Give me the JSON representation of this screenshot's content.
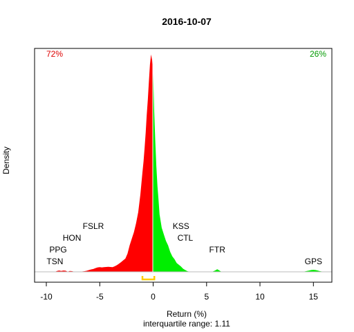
{
  "chart_data": {
    "type": "area",
    "title": "2016-10-07",
    "xlabel": "Return (%)",
    "subtitle": "interquartile range: 1.11",
    "ylabel": "Density",
    "xlim": [
      -10.5,
      16.8
    ],
    "xticks": [
      -10,
      -5,
      0,
      5,
      10,
      15
    ],
    "pct_negative": "72%",
    "pct_positive": "26%",
    "colors": {
      "negative": "#ff0000",
      "positive": "#00ee00",
      "iqr": "#ffcc00",
      "neg_text": "#dd0000",
      "pos_text": "#009900"
    },
    "iqr": [
      -1.0,
      0.11
    ],
    "density": {
      "x": [
        -9.2,
        -9.0,
        -8.8,
        -8.6,
        -8.4,
        -8.2,
        -8.0,
        -7.8,
        -7.6,
        -7.4,
        -7.2,
        -7.0,
        -6.8,
        -6.6,
        -6.4,
        -6.2,
        -6.0,
        -5.8,
        -5.6,
        -5.4,
        -5.2,
        -5.0,
        -4.8,
        -4.6,
        -4.4,
        -4.2,
        -4.0,
        -3.8,
        -3.6,
        -3.4,
        -3.2,
        -3.0,
        -2.8,
        -2.6,
        -2.4,
        -2.2,
        -2.0,
        -1.8,
        -1.6,
        -1.4,
        -1.2,
        -1.0,
        -0.9,
        -0.8,
        -0.7,
        -0.6,
        -0.5,
        -0.4,
        -0.3,
        -0.2,
        -0.1,
        0.0,
        0.1,
        0.2,
        0.3,
        0.4,
        0.5,
        0.6,
        0.8,
        1.0,
        1.2,
        1.4,
        1.6,
        1.8,
        2.0,
        2.2,
        2.4,
        2.6,
        2.8,
        3.0,
        3.2,
        3.4,
        3.6,
        3.8,
        4.0,
        4.5,
        5.0,
        5.5,
        5.8,
        6.0,
        6.2,
        6.4,
        6.6,
        7.0,
        8.0,
        10.0,
        12.0,
        14.0,
        14.6,
        14.8,
        15.0,
        15.2,
        15.4,
        15.6,
        16.0
      ],
      "y": [
        0.0,
        0.004,
        0.006,
        0.004,
        0.006,
        0.005,
        0.001,
        0.004,
        0.003,
        0.001,
        0.0,
        0.0,
        0.0,
        0.002,
        0.003,
        0.005,
        0.008,
        0.011,
        0.013,
        0.017,
        0.02,
        0.021,
        0.02,
        0.021,
        0.022,
        0.023,
        0.022,
        0.021,
        0.025,
        0.03,
        0.037,
        0.044,
        0.052,
        0.06,
        0.082,
        0.12,
        0.15,
        0.18,
        0.22,
        0.27,
        0.35,
        0.45,
        0.5,
        0.56,
        0.63,
        0.71,
        0.78,
        0.86,
        0.94,
        0.985,
        0.96,
        0.9,
        0.73,
        0.59,
        0.48,
        0.39,
        0.33,
        0.26,
        0.2,
        0.17,
        0.14,
        0.12,
        0.09,
        0.07,
        0.057,
        0.04,
        0.032,
        0.024,
        0.014,
        0.008,
        0.003,
        0.001,
        0.0,
        0.0,
        0.0,
        0.0,
        0.0,
        0.0,
        0.006,
        0.012,
        0.006,
        0.0,
        0.0,
        0.0,
        0.0,
        0.0,
        0.0,
        0.0,
        0.006,
        0.008,
        0.009,
        0.008,
        0.006,
        0.003,
        0.0
      ]
    },
    "annotations": [
      {
        "text": "TSN",
        "x": -9.2,
        "level": 1
      },
      {
        "text": "PPG",
        "x": -8.9,
        "level": 2
      },
      {
        "text": "HON",
        "x": -7.6,
        "level": 3
      },
      {
        "text": "FSLR",
        "x": -5.6,
        "level": 4
      },
      {
        "text": "KSS",
        "x": 2.6,
        "level": 4
      },
      {
        "text": "CTL",
        "x": 3.0,
        "level": 3
      },
      {
        "text": "FTR",
        "x": 6.0,
        "level": 2
      },
      {
        "text": "GPS",
        "x": 15.0,
        "level": 1
      }
    ]
  }
}
